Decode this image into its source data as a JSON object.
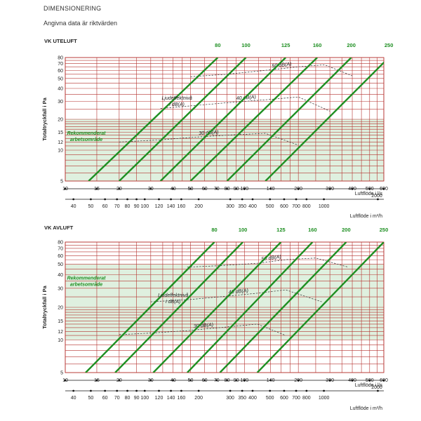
{
  "header": {
    "title": "DIMENSIONERING",
    "subtitle": "Angivna data är riktvärden"
  },
  "chart_data": [
    {
      "type": "line",
      "title": "VK UTELUFT",
      "ylabel": "Totaltryckfall i Pa",
      "xlabel": "Luftflöde i l/s",
      "x2label": "Luftflöde i m³/h",
      "x_scale": "log",
      "y_scale": "log",
      "xlim": [
        10,
        600
      ],
      "ylim": [
        5,
        80
      ],
      "x_ticks": [
        10,
        15,
        20,
        30,
        40,
        50,
        60,
        70,
        80,
        90,
        100,
        140,
        200,
        300,
        400,
        500,
        600
      ],
      "x_tick_labels": [
        "10",
        "15",
        "20",
        "30",
        "40",
        "50",
        "60",
        "70",
        "80",
        "90",
        "100",
        "140",
        "200",
        "300",
        "400",
        "500",
        "600"
      ],
      "x2_ticks": [
        40,
        50,
        60,
        70,
        80,
        90,
        100,
        120,
        140,
        160,
        200,
        300,
        350,
        400,
        500,
        600,
        700,
        800,
        1000,
        2000
      ],
      "x2_tick_labels": [
        "40",
        "50",
        "60",
        "70",
        "80",
        "90",
        "100",
        "120",
        "140",
        "160",
        "200",
        "300",
        "350",
        "400",
        "500",
        "600",
        "700",
        "800",
        "1000",
        "2000"
      ],
      "y_ticks": [
        5,
        10,
        12,
        15,
        20,
        30,
        40,
        50,
        60,
        70,
        80
      ],
      "y_tick_labels": [
        "5",
        "10",
        "12",
        "15",
        "20",
        "30",
        "40",
        "50",
        "60",
        "70",
        "80"
      ],
      "recommended_band": {
        "ymin": 5,
        "ymax": 20,
        "label_line1": "Rekommenderat",
        "label_line2": "arbetsområde"
      },
      "series": [
        {
          "name": "80",
          "x": [
            13.5,
            71
          ],
          "y": [
            5,
            80
          ]
        },
        {
          "name": "100",
          "x": [
            20,
            102
          ],
          "y": [
            5,
            80
          ]
        },
        {
          "name": "125",
          "x": [
            34,
            170
          ],
          "y": [
            5,
            80
          ]
        },
        {
          "name": "160",
          "x": [
            50,
            255
          ],
          "y": [
            5,
            80
          ]
        },
        {
          "name": "200",
          "x": [
            80,
            395
          ],
          "y": [
            5,
            80
          ]
        },
        {
          "name": "250",
          "x": [
            131,
            640
          ],
          "y": [
            5,
            80
          ]
        }
      ],
      "sound_lines": [
        {
          "label": "30 dB(A)",
          "x": [
            20,
            34,
            50,
            80,
            131,
            200
          ],
          "y": [
            12,
            12.6,
            13.3,
            14,
            14.6,
            11.2
          ]
        },
        {
          "label": "40 dB(A)",
          "x": [
            34,
            50,
            80,
            131,
            200,
            300
          ],
          "y": [
            25.5,
            27,
            29,
            31,
            33,
            24
          ]
        },
        {
          "label": "50 dB(A)",
          "x": [
            50,
            80,
            131,
            200,
            280,
            400
          ],
          "y": [
            52,
            55,
            60,
            65,
            68,
            53
          ]
        }
      ],
      "annotation": {
        "line1": "Ljudeffektnivå",
        "line2": "i dB(A)",
        "x": 42,
        "y": 31
      }
    },
    {
      "type": "line",
      "title": "VK AVLUFT",
      "ylabel": "Totaltryckfall i Pa",
      "xlabel": "Luftflöde i l/s",
      "x2label": "Luftflöde i m³/h",
      "x_scale": "log",
      "y_scale": "log",
      "xlim": [
        10,
        600
      ],
      "ylim": [
        5,
        80
      ],
      "x_ticks": [
        10,
        15,
        20,
        30,
        40,
        50,
        60,
        70,
        80,
        90,
        100,
        140,
        200,
        300,
        400,
        500,
        600
      ],
      "x_tick_labels": [
        "10",
        "15",
        "20",
        "30",
        "40",
        "50",
        "60",
        "70",
        "80",
        "90",
        "100",
        "140",
        "200",
        "300",
        "400",
        "500",
        "600"
      ],
      "x2_ticks": [
        40,
        50,
        60,
        70,
        80,
        90,
        100,
        120,
        140,
        160,
        200,
        300,
        350,
        400,
        500,
        600,
        700,
        800,
        1000,
        2000
      ],
      "x2_tick_labels": [
        "40",
        "50",
        "60",
        "70",
        "80",
        "90",
        "100",
        "120",
        "140",
        "160",
        "200",
        "300",
        "350",
        "400",
        "500",
        "600",
        "700",
        "800",
        "1000",
        "2000"
      ],
      "y_ticks": [
        5,
        10,
        12,
        15,
        20,
        30,
        40,
        50,
        60,
        70,
        80
      ],
      "y_tick_labels": [
        "5",
        "10",
        "12",
        "15",
        "20",
        "30",
        "40",
        "50",
        "60",
        "70",
        "80"
      ],
      "recommended_band": {
        "ymin": 10,
        "ymax": 50,
        "label_line1": "Rekommenderat",
        "label_line2": "arbetsområde"
      },
      "series": [
        {
          "name": "80",
          "x": [
            13,
            68
          ],
          "y": [
            5,
            80
          ]
        },
        {
          "name": "100",
          "x": [
            19,
            98
          ],
          "y": [
            5,
            80
          ]
        },
        {
          "name": "125",
          "x": [
            31,
            160
          ],
          "y": [
            5,
            80
          ]
        },
        {
          "name": "160",
          "x": [
            48,
            240
          ],
          "y": [
            5,
            80
          ]
        },
        {
          "name": "200",
          "x": [
            73,
            370
          ],
          "y": [
            5,
            80
          ]
        },
        {
          "name": "250",
          "x": [
            118,
            600
          ],
          "y": [
            5,
            80
          ]
        }
      ],
      "sound_lines": [
        {
          "label": "30 dB(A)",
          "x": [
            20,
            31,
            48,
            73,
            118,
            170
          ],
          "y": [
            11.2,
            11.6,
            12.2,
            13,
            14,
            11
          ]
        },
        {
          "label": "40 dB(A)",
          "x": [
            30,
            48,
            73,
            118,
            170,
            270
          ],
          "y": [
            22.5,
            23.5,
            25,
            27,
            29,
            22.5
          ]
        },
        {
          "label": "50 dB(A)",
          "x": [
            48,
            73,
            118,
            170,
            250,
            380
          ],
          "y": [
            47,
            48.5,
            51,
            55,
            57,
            47
          ]
        }
      ],
      "annotation": {
        "line1": "Ljudeffektnivå",
        "line2": "i dB(A)",
        "x": 40,
        "y": 25
      }
    }
  ]
}
